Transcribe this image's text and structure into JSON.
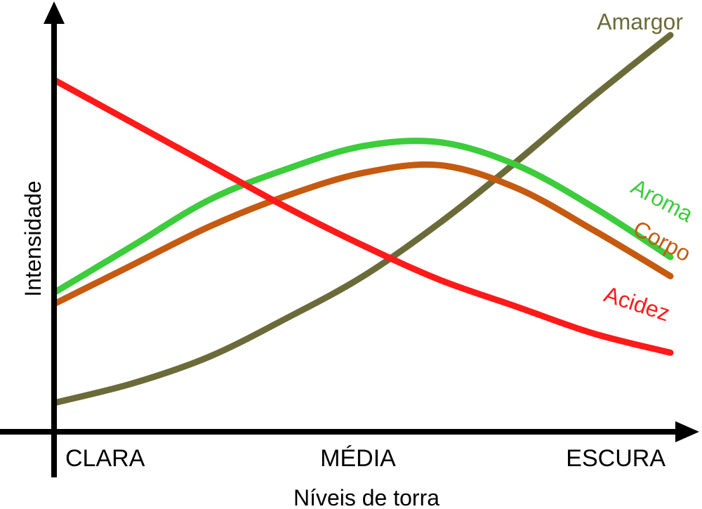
{
  "chart_data": {
    "type": "line",
    "xlabel": "Níveis de torra",
    "ylabel": "Intensidade",
    "categories": [
      "CLARA",
      "MÉDIA",
      "ESCURA"
    ],
    "xlim": [
      0,
      1
    ],
    "ylim": [
      0,
      1
    ],
    "grid": false,
    "legend": "inline labels at curve ends",
    "series": [
      {
        "name": "Amargor",
        "color": "#6b6b3a",
        "x": [
          0.0,
          0.125,
          0.25,
          0.375,
          0.5,
          0.625,
          0.75,
          0.875,
          1.0
        ],
        "y": [
          0.04,
          0.09,
          0.16,
          0.26,
          0.37,
          0.51,
          0.67,
          0.84,
          1.0
        ]
      },
      {
        "name": "Aroma",
        "color": "#3ccc3c",
        "x": [
          0.0,
          0.125,
          0.25,
          0.375,
          0.5,
          0.625,
          0.75,
          0.875,
          1.0
        ],
        "y": [
          0.33,
          0.45,
          0.57,
          0.65,
          0.71,
          0.72,
          0.66,
          0.55,
          0.42
        ]
      },
      {
        "name": "Corpo",
        "color": "#c55a10",
        "x": [
          0.0,
          0.125,
          0.25,
          0.375,
          0.5,
          0.625,
          0.75,
          0.875,
          1.0
        ],
        "y": [
          0.3,
          0.4,
          0.5,
          0.58,
          0.64,
          0.66,
          0.6,
          0.49,
          0.37
        ]
      },
      {
        "name": "Acidez",
        "color": "#ff1a1a",
        "x": [
          0.0,
          0.125,
          0.25,
          0.375,
          0.5,
          0.625,
          0.75,
          0.875,
          1.0
        ],
        "y": [
          0.88,
          0.77,
          0.66,
          0.55,
          0.45,
          0.36,
          0.29,
          0.22,
          0.17
        ]
      }
    ]
  }
}
